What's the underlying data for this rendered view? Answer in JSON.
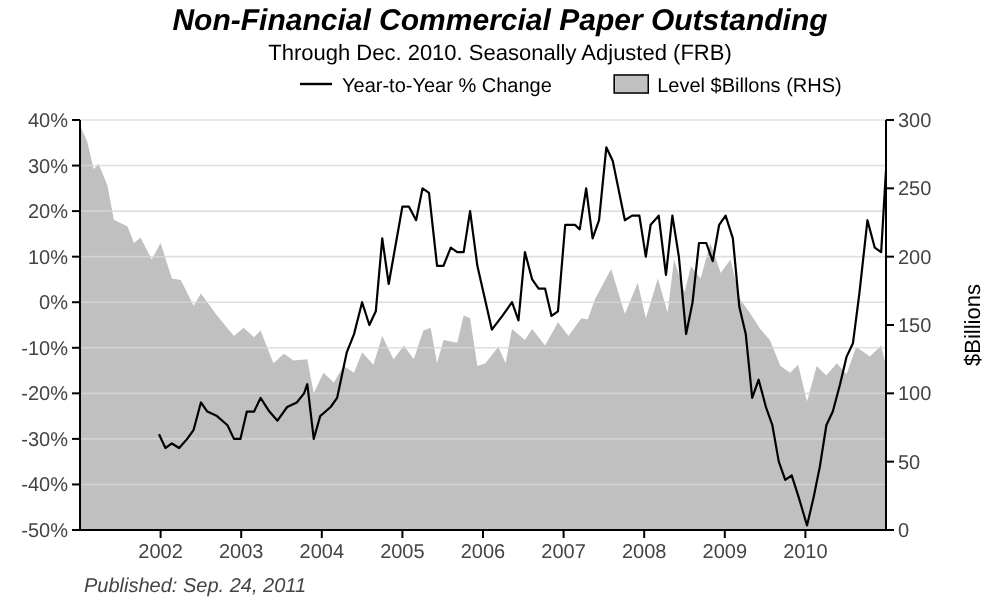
{
  "chart_data": {
    "type": "line",
    "title": "Non-Financial Commercial Paper Outstanding",
    "subtitle": "Through Dec. 2010. Seasonally Adjusted  (FRB)",
    "y2label": "$Billions",
    "annotations": [
      "Published: Sep. 24, 2011"
    ],
    "xlim": [
      2001,
      2011
    ],
    "xticks": [
      2002,
      2003,
      2004,
      2005,
      2006,
      2007,
      2008,
      2009,
      2010
    ],
    "ylim": [
      -50,
      40
    ],
    "yticks": [
      {
        "value": -50,
        "label": "-50%"
      },
      {
        "value": -40,
        "label": "-40%"
      },
      {
        "value": -30,
        "label": "-30%"
      },
      {
        "value": -20,
        "label": "-20%"
      },
      {
        "value": -10,
        "label": "-10%"
      },
      {
        "value": 0,
        "label": "0%"
      },
      {
        "value": 10,
        "label": "10%"
      },
      {
        "value": 20,
        "label": "20%"
      },
      {
        "value": 30,
        "label": "30%"
      },
      {
        "value": 40,
        "label": "40%"
      }
    ],
    "y2lim": [
      0,
      300
    ],
    "y2ticks": [
      0,
      50,
      100,
      150,
      200,
      250,
      300
    ],
    "grid": "y",
    "legend": "top",
    "marker": "none",
    "series": [
      {
        "name": "Level $Billons (RHS)",
        "type": "area",
        "axis": "y2",
        "color": "#c0c0c0",
        "x": [
          2001.0,
          2001.09,
          2001.17,
          2001.23,
          2001.34,
          2001.42,
          2001.59,
          2001.67,
          2001.75,
          2001.89,
          2002.0,
          2002.14,
          2002.25,
          2002.41,
          2002.5,
          2002.7,
          2002.91,
          2003.03,
          2003.16,
          2003.24,
          2003.4,
          2003.53,
          2003.65,
          2003.82,
          2003.9,
          2004.02,
          2004.15,
          2004.27,
          2004.4,
          2004.5,
          2004.64,
          2004.75,
          2004.89,
          2005.02,
          2005.14,
          2005.26,
          2005.35,
          2005.43,
          2005.51,
          2005.68,
          2005.76,
          2005.84,
          2005.93,
          2006.03,
          2006.19,
          2006.28,
          2006.36,
          2006.52,
          2006.61,
          2006.77,
          2006.93,
          2007.06,
          2007.22,
          2007.3,
          2007.39,
          2007.59,
          2007.76,
          2007.92,
          2008.02,
          2008.17,
          2008.29,
          2008.37,
          2008.5,
          2008.58,
          2008.7,
          2008.82,
          2008.95,
          2009.07,
          2009.19,
          2009.32,
          2009.44,
          2009.56,
          2009.69,
          2009.81,
          2009.91,
          2010.02,
          2010.14,
          2010.26,
          2010.39,
          2010.51,
          2010.63,
          2010.8,
          2010.94,
          2011.0
        ],
        "values": [
          296,
          284,
          264,
          268,
          252,
          227,
          222,
          210,
          214,
          198,
          210,
          184,
          183,
          164,
          173,
          157,
          142,
          148,
          141,
          146,
          122,
          129,
          124,
          125,
          100,
          115,
          108,
          120,
          115,
          130,
          121,
          142,
          125,
          135,
          125,
          146,
          148,
          122,
          139,
          137,
          157,
          155,
          120,
          122,
          134,
          122,
          147,
          139,
          147,
          135,
          152,
          142,
          155,
          154,
          169,
          191,
          158,
          181,
          155,
          184,
          159,
          198,
          174,
          193,
          184,
          210,
          188,
          198,
          169,
          158,
          147,
          139,
          120,
          115,
          121,
          94,
          120,
          113,
          122,
          114,
          134,
          127,
          135,
          120
        ]
      },
      {
        "name": "Year-to-Year % Change",
        "color": "#000000",
        "x": [
          2001.98,
          2002.06,
          2002.14,
          2002.23,
          2002.33,
          2002.41,
          2002.5,
          2002.58,
          2002.7,
          2002.83,
          2002.91,
          2002.99,
          2003.07,
          2003.16,
          2003.24,
          2003.35,
          2003.45,
          2003.57,
          2003.69,
          2003.78,
          2003.82,
          2003.9,
          2003.98,
          2004.11,
          2004.19,
          2004.31,
          2004.4,
          2004.5,
          2004.59,
          2004.67,
          2004.75,
          2004.83,
          2004.92,
          2005.0,
          2005.08,
          2005.17,
          2005.25,
          2005.33,
          2005.43,
          2005.51,
          2005.6,
          2005.68,
          2005.76,
          2005.84,
          2005.93,
          2006.11,
          2006.24,
          2006.36,
          2006.44,
          2006.52,
          2006.61,
          2006.69,
          2006.77,
          2006.85,
          2006.93,
          2007.02,
          2007.14,
          2007.2,
          2007.28,
          2007.36,
          2007.44,
          2007.53,
          2007.61,
          2007.76,
          2007.85,
          2007.94,
          2008.02,
          2008.08,
          2008.18,
          2008.27,
          2008.35,
          2008.43,
          2008.52,
          2008.6,
          2008.68,
          2008.77,
          2008.85,
          2008.93,
          2009.01,
          2009.1,
          2009.18,
          2009.26,
          2009.34,
          2009.42,
          2009.51,
          2009.59,
          2009.67,
          2009.75,
          2009.83,
          2009.92,
          2010.02,
          2010.1,
          2010.18,
          2010.26,
          2010.34,
          2010.43,
          2010.51,
          2010.59,
          2010.67,
          2010.77,
          2010.86,
          2010.94,
          2011.0
        ],
        "values": [
          -29,
          -32,
          -31,
          -32,
          -30,
          -28,
          -22,
          -24,
          -25,
          -27,
          -30,
          -30,
          -24,
          -24,
          -21,
          -24,
          -26,
          -23,
          -22,
          -20,
          -18,
          -30,
          -25,
          -23,
          -21,
          -11,
          -7,
          0,
          -5,
          -2,
          14,
          4,
          13,
          21,
          21,
          18,
          25,
          24,
          8,
          8,
          12,
          11,
          11,
          20,
          8,
          -6,
          -3,
          0,
          -4,
          11,
          5,
          3,
          3,
          -3,
          -2,
          17,
          17,
          16,
          25,
          14,
          18,
          34,
          31,
          18,
          19,
          19,
          10,
          17,
          19,
          6,
          19,
          10,
          -7,
          0,
          13,
          13,
          9,
          17,
          19,
          14,
          -1,
          -7,
          -21,
          -17,
          -23,
          -27,
          -35,
          -39,
          -38,
          -43,
          -49,
          -43,
          -36,
          -27,
          -24,
          -18,
          -12,
          -9,
          2,
          18,
          12,
          11,
          29
        ]
      }
    ]
  }
}
